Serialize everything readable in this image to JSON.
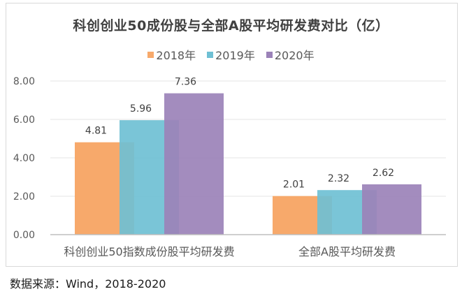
{
  "chart_data": {
    "type": "bar",
    "title": "科创创业50成份股与全部A股平均研发费对比（亿）",
    "categories": [
      "科创创业50指数成份股平均研发费",
      "全部A股平均研发费"
    ],
    "series": [
      {
        "name": "2018年",
        "color": "#f7a96b",
        "values": [
          4.81,
          2.01
        ]
      },
      {
        "name": "2019年",
        "color": "#6fc0d4",
        "values": [
          5.96,
          2.32
        ]
      },
      {
        "name": "2020年",
        "color": "#9b82b8",
        "values": [
          7.36,
          2.62
        ]
      }
    ],
    "data_labels": [
      [
        "4.81",
        "2.01"
      ],
      [
        "5.96",
        "2.32"
      ],
      [
        "7.36",
        "2.62"
      ]
    ],
    "ylim": [
      0,
      8
    ],
    "yticks": [
      "0.00",
      "2.00",
      "4.00",
      "6.00",
      "8.00"
    ],
    "xlabel": "",
    "ylabel": "",
    "grid": true,
    "legend_position": "top-center"
  },
  "source_note": "数据来源：Wind，2018-2020"
}
